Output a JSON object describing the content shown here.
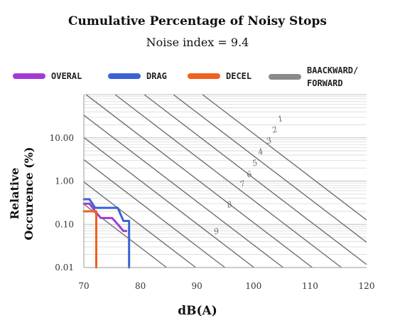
{
  "chart_data": {
    "type": "line",
    "title": "Cumulative Percentage of Noisy Stops",
    "subtitle": "Noise index = 9.4",
    "xlabel": "dB(A)",
    "ylabel": "Relative Occurence (%)",
    "xlim": [
      70,
      120
    ],
    "ylim": [
      0.01,
      100
    ],
    "yscale": "log",
    "x_ticks": [
      "70",
      "80",
      "90",
      "100",
      "110",
      "120"
    ],
    "y_ticks": [
      "0.01",
      "0.10",
      "1.00",
      "10.00"
    ],
    "grid": true,
    "legend_position": "top",
    "series": [
      {
        "name": "OVERAL",
        "color": "#a23bd6",
        "x": [
          70,
          71,
          72,
          73,
          75,
          76,
          77,
          77.5
        ],
        "y": [
          0.3,
          0.3,
          0.2,
          0.14,
          0.14,
          0.1,
          0.07,
          0.07
        ]
      },
      {
        "name": "DRAG",
        "color": "#3b62d6",
        "x": [
          70,
          71,
          72,
          76,
          77,
          78,
          78
        ],
        "y": [
          0.38,
          0.38,
          0.24,
          0.24,
          0.12,
          0.12,
          0.01
        ]
      },
      {
        "name": "DECEL",
        "color": "#f0601e",
        "x": [
          70,
          72,
          72.2,
          72.2
        ],
        "y": [
          0.2,
          0.2,
          0.2,
          0.01
        ]
      },
      {
        "name": "BAACKWARD/ FORWARD",
        "color": "#8a8a8a",
        "x": [],
        "y": []
      }
    ],
    "index_lines": {
      "labels": [
        "1",
        "2",
        "3",
        "4",
        "5",
        "6",
        "7",
        "8",
        "9"
      ]
    }
  }
}
